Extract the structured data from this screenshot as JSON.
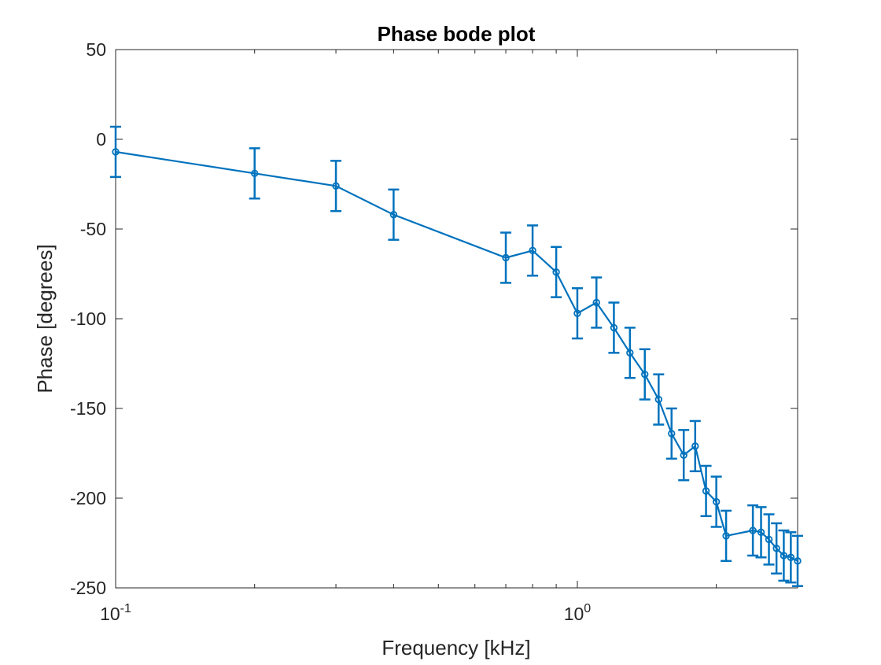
{
  "chart_data": {
    "type": "line",
    "title": "Phase bode plot",
    "xlabel": "Frequency [kHz]",
    "ylabel": "Phase [degrees]",
    "x_scale": "log",
    "xlim": [
      0.1,
      3.0
    ],
    "ylim": [
      -250,
      50
    ],
    "yticks": [
      50,
      0,
      -50,
      -100,
      -150,
      -200,
      -250
    ],
    "xticks": [
      {
        "value": 0.1,
        "base": "10",
        "exp": "-1"
      },
      {
        "value": 1,
        "base": "10",
        "exp": "0"
      }
    ],
    "grid": false,
    "color": "#0072BD",
    "error_bar": 14,
    "series": [
      {
        "x": [
          0.1,
          0.2,
          0.3,
          0.4,
          0.7,
          0.8,
          0.9,
          1.0,
          1.1,
          1.2,
          1.3,
          1.4,
          1.5,
          1.6,
          1.7,
          1.8,
          1.9,
          2.0,
          2.1,
          2.4,
          2.5,
          2.6,
          2.7,
          2.8,
          2.9,
          3.0
        ],
        "y": [
          -7,
          -19,
          -26,
          -42,
          -66,
          -62,
          -74,
          -97,
          -91,
          -105,
          -119,
          -131,
          -145,
          -164,
          -176,
          -171,
          -196,
          -202,
          -221,
          -218,
          -219,
          -223,
          -228,
          -232,
          -233,
          -235
        ],
        "err": [
          14,
          14,
          14,
          14,
          14,
          14,
          14,
          14,
          14,
          14,
          14,
          14,
          14,
          14,
          14,
          14,
          14,
          14,
          14,
          14,
          14,
          14,
          14,
          14,
          14,
          14
        ]
      }
    ]
  }
}
